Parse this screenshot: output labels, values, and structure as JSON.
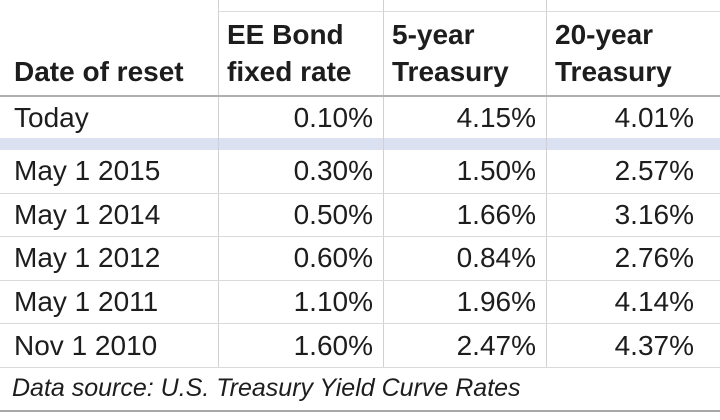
{
  "chart_data": {
    "type": "table",
    "title": "",
    "columns": [
      "Date of reset",
      "EE Bond fixed rate",
      "5-year Treasury",
      "20-year Treasury"
    ],
    "rows": [
      [
        "Today",
        "0.10%",
        "4.15%",
        "4.01%"
      ],
      [
        "May 1 2015",
        "0.30%",
        "1.50%",
        "2.57%"
      ],
      [
        "May 1 2014",
        "0.50%",
        "1.66%",
        "3.16%"
      ],
      [
        "May 1 2012",
        "0.60%",
        "0.84%",
        "2.76%"
      ],
      [
        "May 1 2011",
        "1.10%",
        "1.96%",
        "4.14%"
      ],
      [
        "Nov 1 2010",
        "1.60%",
        "2.47%",
        "4.37%"
      ]
    ],
    "source_note": "Data source: U.S. Treasury Yield Curve Rates"
  },
  "table": {
    "header_lines": [
      [
        "Date of reset"
      ],
      [
        "EE Bond",
        "fixed rate"
      ],
      [
        "5-year",
        "Treasury"
      ],
      [
        "20-year",
        "Treasury"
      ]
    ]
  },
  "colors": {
    "separator_band": "#dbe1f1",
    "row_border": "#d9d9d9",
    "header_border": "#b0aeae",
    "column_divider": "#d2d0d0",
    "bottom_border": "#a9a7a7",
    "text": "#1d1d1d"
  }
}
